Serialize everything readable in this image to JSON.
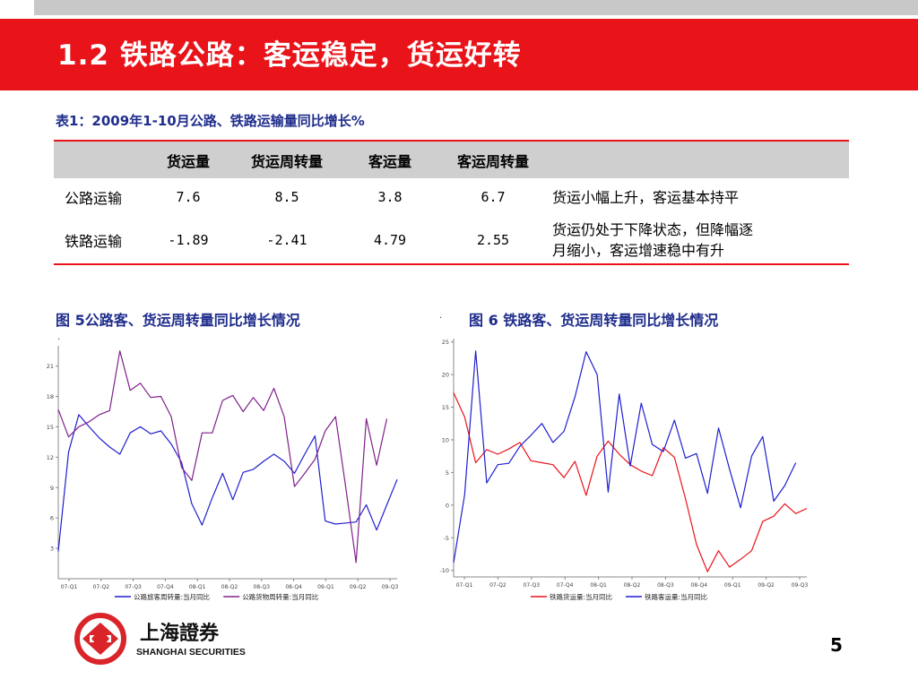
{
  "slide": {
    "title": "1.2 铁路公路：客运稳定，货运好转",
    "page_number": "5"
  },
  "table": {
    "caption": "表1：2009年1-10月公路、铁路运输量同比增长%",
    "headers": [
      "",
      "货运量",
      "货运周转量",
      "客运量",
      "客运周转量",
      ""
    ],
    "rows": [
      {
        "name": "公路运输",
        "values": [
          "7.6",
          "8.5",
          "3.8",
          "6.7"
        ],
        "note": "货运小幅上升，客运基本持平"
      },
      {
        "name": "铁路运输",
        "values": [
          "-1.89",
          "-2.41",
          "4.79",
          "2.55"
        ],
        "note_line1": "货运仍处于下降状态，但降幅逐",
        "note_line2": "月缩小，客运增速稳中有升"
      }
    ]
  },
  "figures": {
    "fig5_title": "图 5公路客、货运周转量同比增长情况",
    "fig6_title": "图 6 铁路客、货运周转量同比增长情况"
  },
  "logo": {
    "chinese": "上海證券",
    "english": "SHANGHAI SECURITIES",
    "brand_color": "#d9252a"
  },
  "colors": {
    "title_bar": "#e8141a",
    "caption_blue": "#1f2d8c",
    "series_blue": "#1f1fd0",
    "series_purple": "#80208a",
    "series_red": "#e8141a"
  },
  "chart_data": [
    {
      "type": "line",
      "title": "",
      "x_ticks": [
        "07-Q1",
        "07-Q2",
        "07-Q3",
        "07-Q4",
        "08-Q1",
        "08-Q2",
        "08-Q3",
        "08-Q4",
        "09-Q1",
        "09-Q2",
        "09-Q3"
      ],
      "y_ticks": [
        3,
        6,
        9,
        12,
        15,
        18,
        21
      ],
      "ylim": [
        0,
        23
      ],
      "legend_position": "bottom",
      "series": [
        {
          "name": "公路旅客周转量:当月同比",
          "color": "#1f1fd0",
          "values": [
            2.7,
            12.5,
            16.2,
            15.0,
            13.9,
            13.0,
            12.3,
            14.4,
            15.0,
            14.3,
            14.6,
            13.3,
            11.5,
            7.4,
            5.3,
            8.0,
            10.4,
            7.8,
            10.5,
            10.8,
            11.6,
            12.3,
            11.6,
            10.4,
            12.3,
            14.1,
            5.7,
            5.4,
            5.5,
            5.6,
            7.3,
            4.8,
            7.3,
            9.8
          ]
        },
        {
          "name": "公路货物周转量:当月同比",
          "color": "#80208a",
          "values": [
            16.7,
            14.0,
            15.0,
            15.5,
            16.2,
            16.6,
            22.5,
            18.6,
            19.3,
            17.9,
            18.0,
            16.0,
            11.0,
            9.7,
            14.4,
            14.4,
            17.6,
            18.1,
            16.5,
            17.9,
            16.6,
            18.8,
            16.0,
            9.1,
            10.4,
            11.8,
            14.6,
            16.0,
            9.0,
            1.6,
            15.8,
            11.2,
            15.8
          ]
        }
      ]
    },
    {
      "type": "line",
      "title": "",
      "x_ticks": [
        "07-Q1",
        "07-Q2",
        "07-Q3",
        "07-Q4",
        "08-Q1",
        "08-Q2",
        "08-Q3",
        "08-Q4",
        "09-Q1",
        "09-Q2",
        "09-Q3"
      ],
      "y_ticks": [
        -10,
        -5,
        0,
        5,
        10,
        15,
        20,
        25
      ],
      "ylim": [
        -11,
        25.5
      ],
      "legend_position": "bottom",
      "series": [
        {
          "name": "铁路货运量:当月同比",
          "color": "#e8141a",
          "values": [
            17.2,
            13.5,
            6.5,
            8.5,
            7.8,
            8.6,
            9.6,
            6.8,
            6.5,
            6.2,
            4.2,
            6.7,
            1.5,
            7.5,
            9.8,
            7.8,
            6.2,
            5.2,
            4.5,
            8.8,
            7.3,
            1.0,
            -6.0,
            -10.2,
            -7.0,
            -9.5,
            -8.3,
            -7.0,
            -2.5,
            -1.7,
            0.2,
            -1.3,
            -0.5
          ]
        },
        {
          "name": "铁路客运量:当月同比",
          "color": "#1f1fd0",
          "values": [
            -8.8,
            1.6,
            23.6,
            3.4,
            6.2,
            6.4,
            9.0,
            10.7,
            12.5,
            9.6,
            11.3,
            16.6,
            23.5,
            20.0,
            2.0,
            17.0,
            6.0,
            15.6,
            9.3,
            8.2,
            13.0,
            7.2,
            7.9,
            1.8,
            11.8,
            5.5,
            -0.4,
            7.5,
            10.5,
            0.6,
            3.0,
            6.5
          ]
        }
      ]
    }
  ]
}
